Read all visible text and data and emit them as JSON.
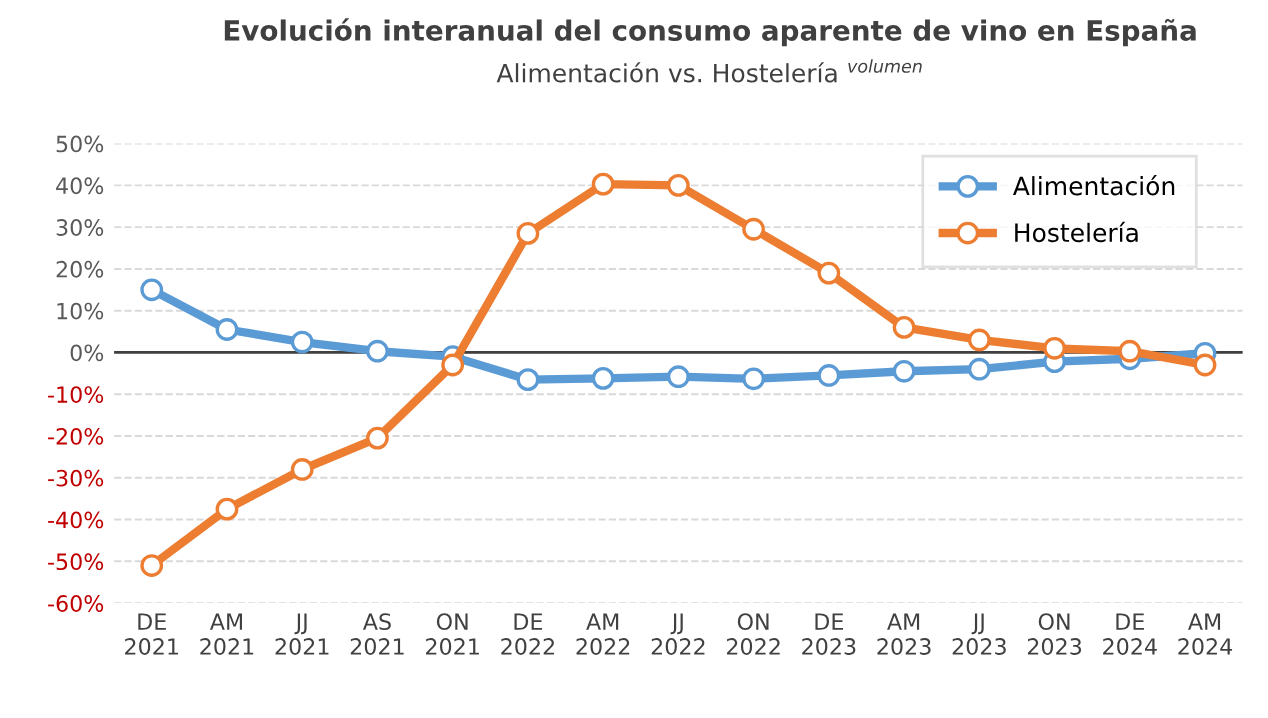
{
  "chart_data": {
    "type": "line",
    "title": "Evolución interanual del consumo aparente de vino en España",
    "subtitle": "Alimentación vs. Hostelería $^{volumen}$",
    "categories": [
      "DE\n2021",
      "AM\n2021",
      "JJ\n2021",
      "AS\n2021",
      "ON\n2021",
      "DE\n2022",
      "AM\n2022",
      "JJ\n2022",
      "ON\n2022",
      "DE\n2023",
      "AM\n2023",
      "JJ\n2023",
      "ON\n2023",
      "DE\n2024",
      "AM\n2024"
    ],
    "series": [
      {
        "name": "Alimentación",
        "color": "#5b9bd5",
        "values": [
          15,
          5.5,
          2.5,
          0.3,
          -1,
          -6.5,
          -6.2,
          -5.8,
          -6.3,
          -5.5,
          -4.5,
          -4,
          -2.2,
          -1.5,
          -0.2
        ]
      },
      {
        "name": "Hostelería",
        "color": "#ed7d31",
        "values": [
          -51,
          -37.5,
          -28,
          -20.5,
          -3,
          28.5,
          40.3,
          40,
          29.5,
          19,
          6,
          3,
          1,
          0.3,
          -3
        ]
      }
    ],
    "ylim": [
      -60,
      50
    ],
    "yticks": [
      {
        "value": 50,
        "label": "50%"
      },
      {
        "value": 40,
        "label": "40%"
      },
      {
        "value": 30,
        "label": "30%"
      },
      {
        "value": 20,
        "label": "20%"
      },
      {
        "value": 10,
        "label": "10%"
      },
      {
        "value": 0,
        "label": "0%"
      },
      {
        "value": -10,
        "label": "-10%"
      },
      {
        "value": -20,
        "label": "-20%"
      },
      {
        "value": -30,
        "label": "-30%"
      },
      {
        "value": -40,
        "label": "-40%"
      },
      {
        "value": -50,
        "label": "-50%"
      },
      {
        "value": -60,
        "label": "-60%"
      }
    ],
    "ref_lines": [
      {
        "axis": "y",
        "value": 0,
        "color": "#404040"
      }
    ],
    "grid": "y",
    "legend": "top right",
    "marker": "circle",
    "line_style": "solid"
  }
}
